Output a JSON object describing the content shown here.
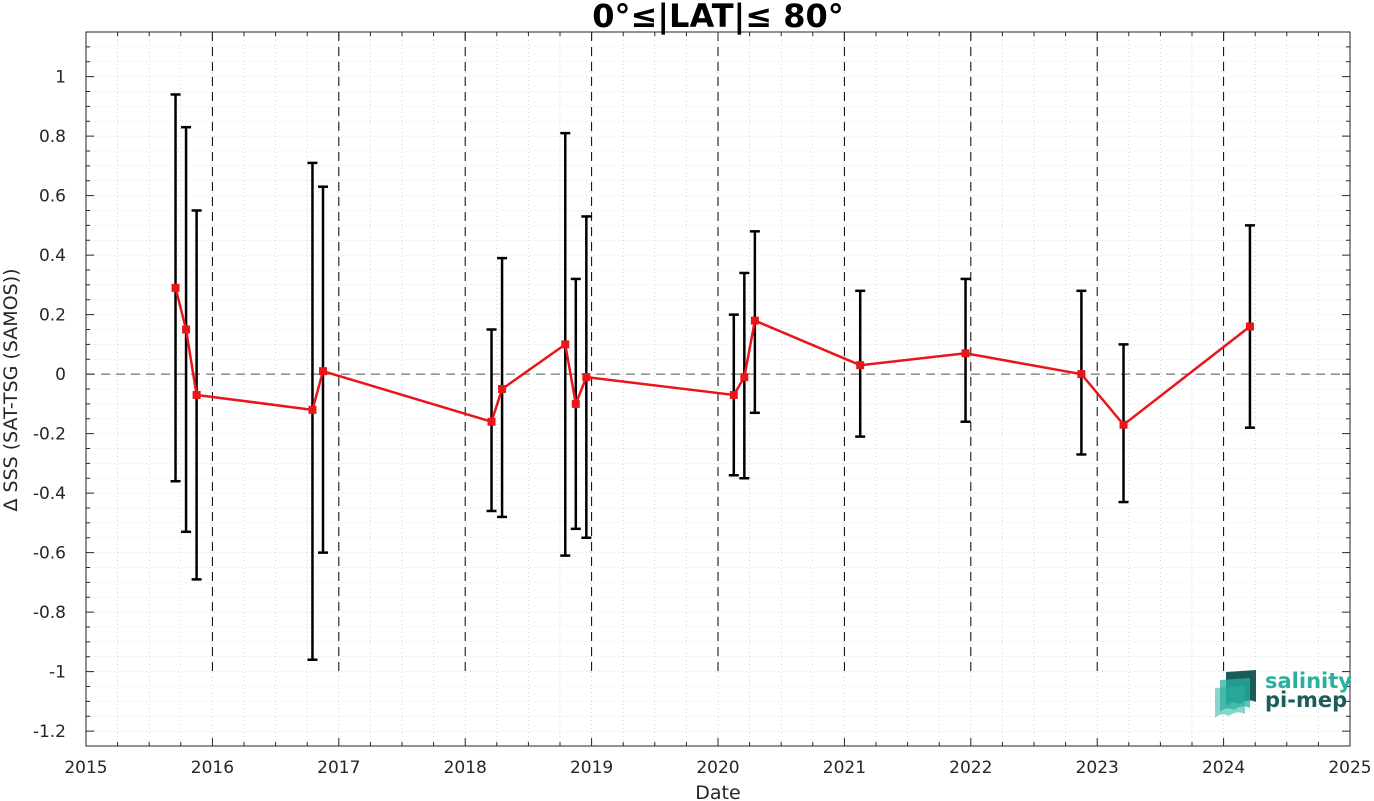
{
  "chart_data": {
    "type": "line",
    "title": "0°≤|LAT|≤ 80°",
    "xlabel": "Date",
    "ylabel": "Δ SSS (SAT-TSG (SAMOS))",
    "xlim": [
      2015,
      2025
    ],
    "ylim": [
      -1.25,
      1.15
    ],
    "x_ticks": [
      "2015",
      "2016",
      "2017",
      "2018",
      "2019",
      "2020",
      "2021",
      "2022",
      "2023",
      "2024",
      "2025"
    ],
    "y_ticks": [
      "1",
      "0.8",
      "0.6",
      "0.4",
      "0.2",
      "0",
      "-0.2",
      "-0.4",
      "-0.6",
      "-0.8",
      "-1",
      "-1.2"
    ],
    "y_tick_values": [
      1,
      0.8,
      0.6,
      0.4,
      0.2,
      0,
      -0.2,
      -0.4,
      -0.6,
      -0.8,
      -1,
      -1.2
    ],
    "grid": "minor dotted",
    "year_boundaries": [
      2016,
      2017,
      2018,
      2019,
      2020,
      2021,
      2022,
      2023,
      2024
    ],
    "reference_line": 0,
    "series": [
      {
        "color": "#e8161a",
        "errorbar_color": "#000000",
        "points": [
          {
            "x": "2015-09",
            "y": 0.29,
            "low": -0.36,
            "high": 0.94
          },
          {
            "x": "2015-10",
            "y": 0.15,
            "low": -0.53,
            "high": 0.83
          },
          {
            "x": "2015-11",
            "y": -0.07,
            "low": -0.69,
            "high": 0.55
          },
          {
            "x": "2016-10",
            "y": -0.12,
            "low": -0.96,
            "high": 0.71
          },
          {
            "x": "2016-11",
            "y": 0.01,
            "low": -0.6,
            "high": 0.63
          },
          {
            "x": "2018-03",
            "y": -0.16,
            "low": -0.46,
            "high": 0.15
          },
          {
            "x": "2018-04",
            "y": -0.05,
            "low": -0.48,
            "high": 0.39
          },
          {
            "x": "2018-10",
            "y": 0.1,
            "low": -0.61,
            "high": 0.81
          },
          {
            "x": "2018-11",
            "y": -0.1,
            "low": -0.52,
            "high": 0.32
          },
          {
            "x": "2018-12",
            "y": -0.01,
            "low": -0.55,
            "high": 0.53
          },
          {
            "x": "2020-02",
            "y": -0.07,
            "low": -0.34,
            "high": 0.2
          },
          {
            "x": "2020-03",
            "y": -0.01,
            "low": -0.35,
            "high": 0.34
          },
          {
            "x": "2020-04",
            "y": 0.18,
            "low": -0.13,
            "high": 0.48
          },
          {
            "x": "2021-02",
            "y": 0.03,
            "low": -0.21,
            "high": 0.28
          },
          {
            "x": "2021-12",
            "y": 0.07,
            "low": -0.16,
            "high": 0.32
          },
          {
            "x": "2022-11",
            "y": 0.0,
            "low": -0.27,
            "high": 0.28
          },
          {
            "x": "2023-03",
            "y": -0.17,
            "low": -0.43,
            "high": 0.1
          },
          {
            "x": "2024-03",
            "y": 0.16,
            "low": -0.18,
            "high": 0.5
          }
        ]
      }
    ]
  },
  "logo": {
    "line1": "salinity",
    "line2": "pi-mep",
    "color_top": "#2ab0a0",
    "color_bottom": "#1a5c58"
  }
}
